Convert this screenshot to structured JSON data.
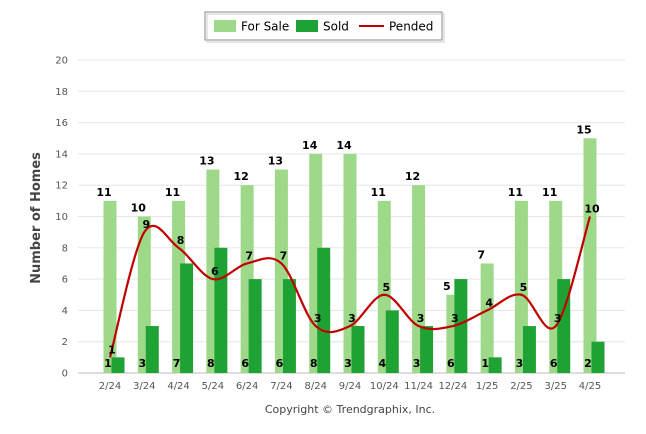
{
  "chart_data": {
    "type": "bar",
    "categories": [
      "2/24",
      "3/24",
      "4/24",
      "5/24",
      "6/24",
      "7/24",
      "8/24",
      "9/24",
      "10/24",
      "11/24",
      "12/24",
      "1/25",
      "2/25",
      "3/25",
      "4/25"
    ],
    "series": [
      {
        "name": "For Sale",
        "type": "bar",
        "color": "#9ed98a",
        "values": [
          11,
          10,
          11,
          13,
          12,
          13,
          14,
          14,
          11,
          12,
          5,
          7,
          11,
          11,
          15
        ]
      },
      {
        "name": "Sold",
        "type": "bar",
        "color": "#1fa234",
        "values": [
          1,
          3,
          7,
          8,
          6,
          6,
          8,
          3,
          4,
          3,
          6,
          1,
          3,
          6,
          2
        ]
      },
      {
        "name": "Pended",
        "type": "line",
        "color": "#c00000",
        "values": [
          1,
          9,
          8,
          6,
          7,
          7,
          3,
          3,
          5,
          3,
          3,
          4,
          5,
          3,
          10
        ]
      }
    ],
    "ylabel": "Number of Homes",
    "xlabel": "",
    "ylim": [
      0,
      20
    ],
    "yticks": [
      0,
      2,
      4,
      6,
      8,
      10,
      12,
      14,
      16,
      18,
      20
    ],
    "grid": true,
    "legend": "top-center"
  },
  "copyright": "Copyright © Trendgraphix, Inc."
}
